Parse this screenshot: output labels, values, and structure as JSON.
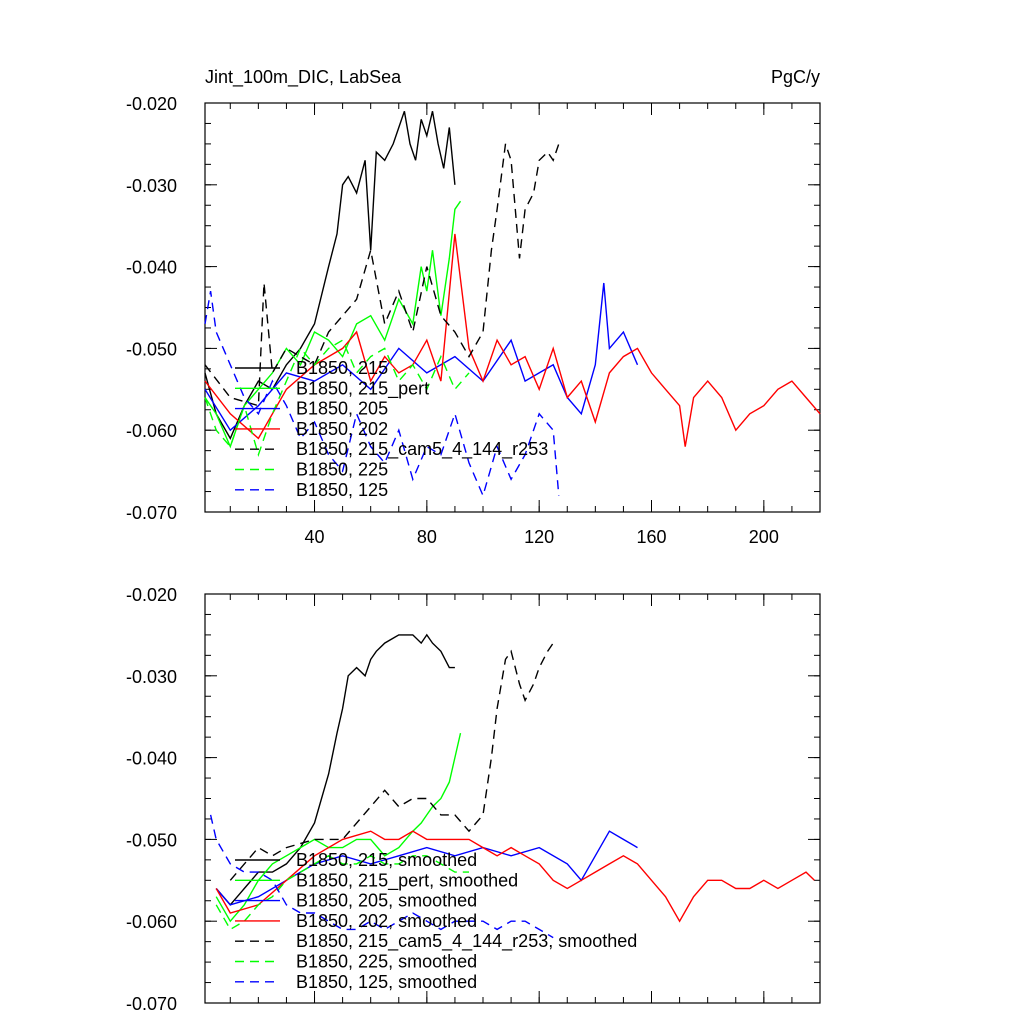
{
  "header": {
    "title_left": "Jint_100m_DIC, LabSea",
    "title_right": "PgC/y"
  },
  "chart_data": [
    {
      "type": "line",
      "panel": "raw",
      "xlim": [
        1,
        220
      ],
      "ylim": [
        -0.07,
        -0.02
      ],
      "xticks": [
        40,
        80,
        120,
        160,
        200
      ],
      "xtick_labels": [
        "40",
        "80",
        "120",
        "160",
        "200"
      ],
      "yticks": [
        -0.02,
        -0.03,
        -0.04,
        -0.05,
        -0.06,
        -0.07
      ],
      "ytick_labels": [
        "-0.020",
        "-0.030",
        "-0.040",
        "-0.050",
        "-0.060",
        "-0.070"
      ],
      "legend_position": "lower-left",
      "series": [
        {
          "name": "B1850, 215",
          "color": "#000000",
          "dash": "solid",
          "x": [
            1,
            5,
            10,
            15,
            20,
            25,
            30,
            35,
            40,
            45,
            48,
            50,
            52,
            55,
            58,
            60,
            62,
            65,
            68,
            70,
            72,
            74,
            76,
            78,
            80,
            82,
            84,
            86,
            88,
            90
          ],
          "y": [
            -0.053,
            -0.058,
            -0.061,
            -0.057,
            -0.054,
            -0.055,
            -0.052,
            -0.05,
            -0.047,
            -0.04,
            -0.036,
            -0.03,
            -0.029,
            -0.031,
            -0.027,
            -0.038,
            -0.026,
            -0.027,
            -0.025,
            -0.023,
            -0.021,
            -0.025,
            -0.027,
            -0.022,
            -0.024,
            -0.021,
            -0.025,
            -0.028,
            -0.023,
            -0.03
          ]
        },
        {
          "name": "B1850, 215_pert",
          "color": "#00ff00",
          "dash": "solid",
          "x": [
            1,
            5,
            10,
            15,
            20,
            25,
            30,
            35,
            40,
            45,
            50,
            55,
            60,
            65,
            70,
            75,
            78,
            80,
            82,
            85,
            88,
            90,
            92
          ],
          "y": [
            -0.056,
            -0.058,
            -0.062,
            -0.057,
            -0.055,
            -0.053,
            -0.05,
            -0.052,
            -0.048,
            -0.049,
            -0.051,
            -0.047,
            -0.046,
            -0.049,
            -0.044,
            -0.047,
            -0.04,
            -0.043,
            -0.038,
            -0.046,
            -0.039,
            -0.033,
            -0.032
          ]
        },
        {
          "name": "B1850, 205",
          "color": "#0000ff",
          "dash": "solid",
          "x": [
            1,
            10,
            20,
            30,
            40,
            50,
            60,
            70,
            80,
            90,
            100,
            110,
            115,
            120,
            125,
            130,
            135,
            140,
            143,
            145,
            150,
            155
          ],
          "y": [
            -0.055,
            -0.06,
            -0.057,
            -0.053,
            -0.054,
            -0.052,
            -0.055,
            -0.05,
            -0.053,
            -0.051,
            -0.054,
            -0.049,
            -0.054,
            -0.053,
            -0.052,
            -0.056,
            -0.058,
            -0.052,
            -0.042,
            -0.05,
            -0.048,
            -0.052
          ]
        },
        {
          "name": "B1850, 202",
          "color": "#ff0000",
          "dash": "solid",
          "x": [
            1,
            10,
            20,
            30,
            40,
            50,
            55,
            60,
            65,
            70,
            75,
            80,
            85,
            90,
            95,
            100,
            105,
            110,
            115,
            120,
            125,
            130,
            135,
            140,
            145,
            150,
            155,
            160,
            165,
            170,
            172,
            175,
            180,
            185,
            190,
            195,
            200,
            205,
            210,
            215,
            220
          ],
          "y": [
            -0.054,
            -0.058,
            -0.061,
            -0.055,
            -0.052,
            -0.05,
            -0.048,
            -0.054,
            -0.051,
            -0.053,
            -0.052,
            -0.049,
            -0.054,
            -0.036,
            -0.05,
            -0.054,
            -0.049,
            -0.052,
            -0.051,
            -0.055,
            -0.05,
            -0.056,
            -0.054,
            -0.059,
            -0.053,
            -0.051,
            -0.05,
            -0.053,
            -0.055,
            -0.057,
            -0.062,
            -0.056,
            -0.054,
            -0.056,
            -0.06,
            -0.058,
            -0.057,
            -0.055,
            -0.054,
            -0.056,
            -0.058
          ]
        },
        {
          "name": "B1850, 215_cam5_4_144_r253",
          "color": "#000000",
          "dash": "dash",
          "x": [
            1,
            10,
            20,
            22,
            25,
            30,
            40,
            45,
            50,
            55,
            60,
            65,
            70,
            75,
            80,
            85,
            90,
            95,
            100,
            103,
            105,
            108,
            110,
            113,
            115,
            118,
            120,
            123,
            125,
            127
          ],
          "y": [
            -0.052,
            -0.056,
            -0.057,
            -0.042,
            -0.053,
            -0.05,
            -0.052,
            -0.048,
            -0.046,
            -0.044,
            -0.038,
            -0.047,
            -0.043,
            -0.048,
            -0.04,
            -0.046,
            -0.048,
            -0.051,
            -0.048,
            -0.038,
            -0.033,
            -0.025,
            -0.027,
            -0.039,
            -0.033,
            -0.031,
            -0.027,
            -0.026,
            -0.027,
            -0.025
          ]
        },
        {
          "name": "B1850, 225",
          "color": "#00ff00",
          "dash": "dash",
          "x": [
            1,
            5,
            10,
            15,
            20,
            25,
            30,
            35,
            40,
            45,
            50,
            55,
            60,
            65,
            70,
            75,
            80,
            85,
            90,
            95
          ],
          "y": [
            -0.056,
            -0.06,
            -0.062,
            -0.057,
            -0.063,
            -0.058,
            -0.054,
            -0.05,
            -0.052,
            -0.05,
            -0.049,
            -0.053,
            -0.051,
            -0.05,
            -0.054,
            -0.052,
            -0.055,
            -0.051,
            -0.055,
            -0.053
          ]
        },
        {
          "name": "B1850, 125",
          "color": "#0000ff",
          "dash": "dash",
          "x": [
            1,
            3,
            5,
            10,
            15,
            20,
            25,
            30,
            35,
            40,
            45,
            50,
            55,
            60,
            65,
            70,
            75,
            80,
            85,
            90,
            95,
            100,
            105,
            110,
            115,
            120,
            125,
            127
          ],
          "y": [
            -0.047,
            -0.043,
            -0.048,
            -0.052,
            -0.056,
            -0.058,
            -0.054,
            -0.057,
            -0.061,
            -0.059,
            -0.063,
            -0.065,
            -0.058,
            -0.062,
            -0.064,
            -0.06,
            -0.066,
            -0.062,
            -0.063,
            -0.058,
            -0.064,
            -0.068,
            -0.062,
            -0.066,
            -0.063,
            -0.058,
            -0.06,
            -0.068
          ]
        }
      ]
    },
    {
      "type": "line",
      "panel": "smoothed",
      "xlim": [
        1,
        220
      ],
      "ylim": [
        -0.07,
        -0.02
      ],
      "xticks": [
        40,
        80,
        120,
        160,
        200
      ],
      "yticks": [
        -0.02,
        -0.03,
        -0.04,
        -0.05,
        -0.06,
        -0.07
      ],
      "ytick_labels": [
        "-0.020",
        "-0.030",
        "-0.040",
        "-0.050",
        "-0.060",
        "-0.070"
      ],
      "legend_position": "lower-left",
      "series": [
        {
          "name": "B1850, 215, smoothed",
          "color": "#000000",
          "dash": "solid",
          "x": [
            5,
            10,
            15,
            20,
            25,
            30,
            35,
            40,
            45,
            48,
            50,
            52,
            55,
            58,
            60,
            62,
            65,
            70,
            72,
            75,
            78,
            80,
            82,
            85,
            88,
            90
          ],
          "y": [
            -0.056,
            -0.058,
            -0.056,
            -0.054,
            -0.054,
            -0.053,
            -0.051,
            -0.048,
            -0.042,
            -0.037,
            -0.034,
            -0.03,
            -0.029,
            -0.03,
            -0.028,
            -0.027,
            -0.026,
            -0.025,
            -0.025,
            -0.025,
            -0.026,
            -0.025,
            -0.026,
            -0.027,
            -0.029,
            -0.029
          ]
        },
        {
          "name": "B1850, 215_pert, smoothed",
          "color": "#00ff00",
          "dash": "solid",
          "x": [
            5,
            10,
            15,
            20,
            25,
            30,
            35,
            40,
            45,
            50,
            55,
            60,
            65,
            70,
            75,
            78,
            80,
            82,
            85,
            88,
            90,
            92
          ],
          "y": [
            -0.057,
            -0.06,
            -0.058,
            -0.055,
            -0.053,
            -0.052,
            -0.051,
            -0.05,
            -0.051,
            -0.051,
            -0.05,
            -0.05,
            -0.052,
            -0.051,
            -0.049,
            -0.048,
            -0.047,
            -0.046,
            -0.045,
            -0.043,
            -0.04,
            -0.037
          ]
        },
        {
          "name": "B1850, 205, smoothed",
          "color": "#0000ff",
          "dash": "solid",
          "x": [
            5,
            10,
            20,
            30,
            40,
            50,
            60,
            70,
            80,
            90,
            100,
            110,
            120,
            130,
            135,
            140,
            145,
            150,
            155
          ],
          "y": [
            -0.056,
            -0.058,
            -0.057,
            -0.055,
            -0.053,
            -0.052,
            -0.053,
            -0.052,
            -0.051,
            -0.052,
            -0.051,
            -0.052,
            -0.051,
            -0.053,
            -0.055,
            -0.052,
            -0.049,
            -0.05,
            -0.051
          ]
        },
        {
          "name": "B1850, 202, smoothed",
          "color": "#ff0000",
          "dash": "solid",
          "x": [
            5,
            10,
            20,
            30,
            40,
            50,
            60,
            65,
            70,
            75,
            80,
            85,
            90,
            95,
            100,
            105,
            110,
            115,
            120,
            125,
            130,
            135,
            140,
            145,
            150,
            155,
            160,
            165,
            170,
            175,
            180,
            185,
            190,
            195,
            200,
            205,
            210,
            215,
            218
          ],
          "y": [
            -0.056,
            -0.059,
            -0.058,
            -0.055,
            -0.052,
            -0.05,
            -0.049,
            -0.05,
            -0.05,
            -0.049,
            -0.05,
            -0.05,
            -0.05,
            -0.05,
            -0.051,
            -0.052,
            -0.051,
            -0.052,
            -0.053,
            -0.055,
            -0.056,
            -0.055,
            -0.054,
            -0.053,
            -0.052,
            -0.053,
            -0.055,
            -0.057,
            -0.06,
            -0.057,
            -0.055,
            -0.055,
            -0.056,
            -0.056,
            -0.055,
            -0.056,
            -0.055,
            -0.054,
            -0.055
          ]
        },
        {
          "name": "B1850, 215_cam5_4_144_r253, smoothed",
          "color": "#000000",
          "dash": "dash",
          "x": [
            10,
            20,
            25,
            30,
            40,
            50,
            60,
            65,
            70,
            75,
            80,
            85,
            90,
            95,
            100,
            103,
            105,
            108,
            110,
            113,
            115,
            118,
            120,
            123,
            125
          ],
          "y": [
            -0.055,
            -0.051,
            -0.052,
            -0.051,
            -0.05,
            -0.05,
            -0.046,
            -0.044,
            -0.046,
            -0.045,
            -0.045,
            -0.047,
            -0.047,
            -0.049,
            -0.047,
            -0.04,
            -0.034,
            -0.028,
            -0.027,
            -0.031,
            -0.033,
            -0.031,
            -0.029,
            -0.027,
            -0.026
          ]
        },
        {
          "name": "B1850, 225, smoothed",
          "color": "#00ff00",
          "dash": "dash",
          "x": [
            5,
            10,
            15,
            20,
            25,
            30,
            35,
            40,
            45,
            50,
            55,
            60,
            65,
            70,
            75,
            80,
            85,
            90,
            95
          ],
          "y": [
            -0.058,
            -0.061,
            -0.06,
            -0.058,
            -0.057,
            -0.055,
            -0.054,
            -0.053,
            -0.052,
            -0.053,
            -0.053,
            -0.052,
            -0.053,
            -0.053,
            -0.052,
            -0.052,
            -0.053,
            -0.054,
            -0.054
          ]
        },
        {
          "name": "B1850, 125, smoothed",
          "color": "#0000ff",
          "dash": "dash",
          "x": [
            3,
            5,
            10,
            15,
            20,
            25,
            30,
            35,
            40,
            45,
            50,
            55,
            60,
            65,
            70,
            75,
            80,
            85,
            90,
            95,
            100,
            105,
            110,
            115,
            120,
            125
          ],
          "y": [
            -0.047,
            -0.05,
            -0.053,
            -0.054,
            -0.054,
            -0.055,
            -0.058,
            -0.059,
            -0.059,
            -0.06,
            -0.061,
            -0.061,
            -0.06,
            -0.061,
            -0.06,
            -0.059,
            -0.06,
            -0.061,
            -0.06,
            -0.06,
            -0.06,
            -0.061,
            -0.06,
            -0.06,
            -0.061,
            -0.062
          ]
        }
      ]
    }
  ]
}
